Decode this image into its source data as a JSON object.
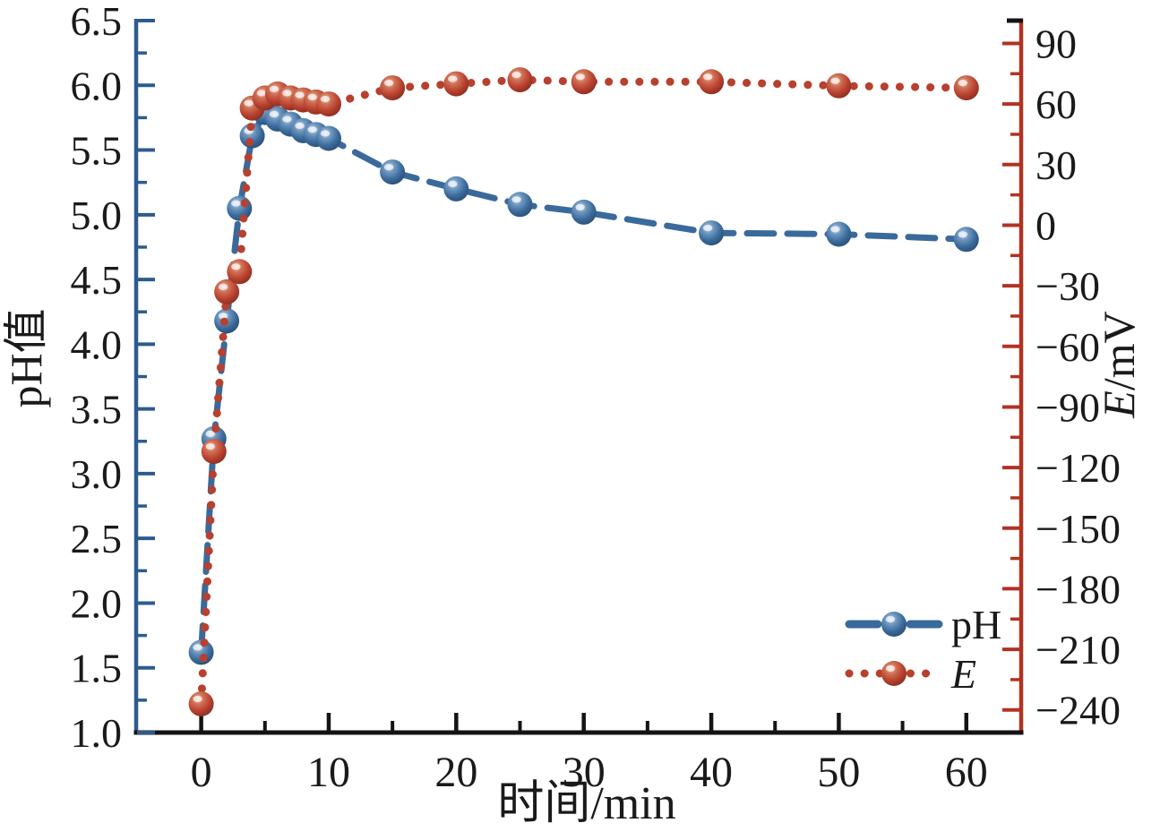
{
  "figure": {
    "background": "#ffffff"
  },
  "chart_data": {
    "type": "line",
    "title": "",
    "xlabel": "时间/min",
    "grid": false,
    "x_axis": {
      "ticks": [
        0,
        10,
        20,
        30,
        40,
        50,
        60
      ],
      "minor_ticks": [
        5,
        15,
        25,
        35,
        45,
        55
      ],
      "lim": [
        -5.1,
        64.3
      ],
      "color": "#141414"
    },
    "left_axis": {
      "label": "pH值",
      "ticks": [
        6.5,
        6.0,
        5.5,
        5.0,
        4.5,
        4.0,
        3.5,
        3.0,
        2.5,
        2.0,
        1.5,
        1.0
      ],
      "minor_ticks": [
        6.25,
        5.75,
        5.25,
        4.75,
        4.25,
        3.75,
        3.25,
        2.75,
        2.25,
        1.75,
        1.25
      ],
      "lim": [
        1.0,
        6.5
      ],
      "color": "#2d5b8e"
    },
    "right_axis": {
      "label": "E/mV",
      "label_italic": "E",
      "label_rest": "/mV",
      "ticks": [
        90,
        60,
        30,
        0,
        -30,
        -60,
        -90,
        -120,
        -150,
        -180,
        -210,
        -240
      ],
      "minor_ticks": [
        75,
        45,
        15,
        -15,
        -45,
        -75,
        -105,
        -135,
        -165,
        -195,
        -225
      ],
      "lim": [
        -251.2,
        101.3
      ],
      "color": "#b23222"
    },
    "x": [
      0,
      1,
      2,
      3,
      4,
      5,
      6,
      7,
      8,
      9,
      10,
      15,
      20,
      25,
      30,
      40,
      50,
      60
    ],
    "series": [
      {
        "name": "pH",
        "axis": "left",
        "style": "dashed",
        "color": "#3a6a9c",
        "values": [
          1.62,
          3.27,
          4.18,
          5.05,
          5.61,
          5.79,
          5.74,
          5.7,
          5.65,
          5.62,
          5.59,
          5.33,
          5.2,
          5.08,
          5.02,
          4.86,
          4.85,
          4.81
        ]
      },
      {
        "name": "E",
        "axis": "right",
        "style": "dotted",
        "color": "#b8402e",
        "values": [
          -237,
          -112,
          -33,
          -23,
          58,
          63,
          65,
          63,
          62,
          61,
          60,
          68,
          70,
          72,
          71,
          71,
          69,
          68
        ]
      }
    ],
    "legend": {
      "position": "inside-bottom-right",
      "entries": [
        {
          "label": "pH",
          "italic": false,
          "color": "#3a6a9c",
          "line": "dashed"
        },
        {
          "label": "E",
          "italic": true,
          "color": "#b8402e",
          "line": "dotted"
        }
      ]
    }
  }
}
